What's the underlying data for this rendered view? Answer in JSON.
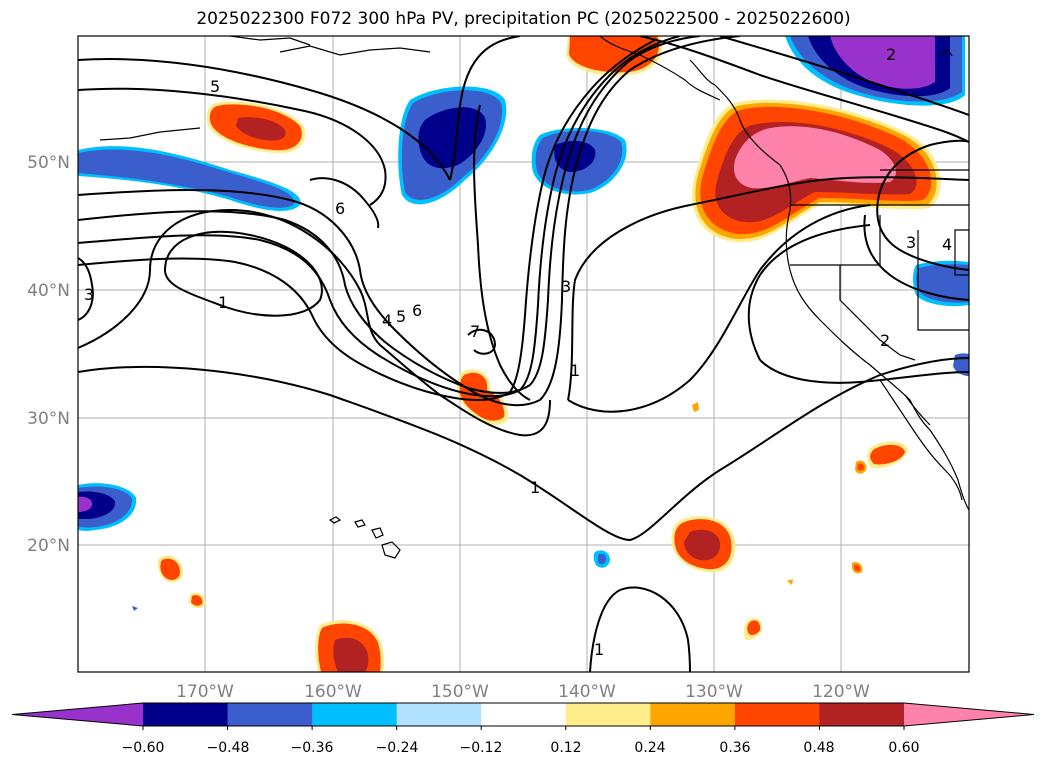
{
  "title": "2025022300 F072 300 hPa PV, precipitation PC (2025022500 - 2025022600)",
  "map": {
    "lat_labels": [
      "50°N",
      "40°N",
      "30°N",
      "20°N"
    ],
    "lon_labels": [
      "170°W",
      "160°W",
      "150°W",
      "140°W",
      "130°W",
      "120°W"
    ],
    "pv_contour_labels": [
      "5",
      "6",
      "1",
      "3",
      "4",
      "5",
      "6",
      "7",
      "3",
      "1",
      "1",
      "1",
      "2",
      "3",
      "4",
      "2"
    ]
  },
  "colorbar": {
    "ticks": [
      "−0.60",
      "−0.48",
      "−0.36",
      "−0.24",
      "−0.12",
      "0.12",
      "0.24",
      "0.36",
      "0.48",
      "0.60"
    ],
    "colors": [
      "#9932CC",
      "#00008B",
      "#3A5FCD",
      "#00BFFF",
      "#B0E2FF",
      "#FFFFFF",
      "#FFEC8B",
      "#FFA500",
      "#FF4500",
      "#B22222",
      "#FF82AB"
    ]
  }
}
